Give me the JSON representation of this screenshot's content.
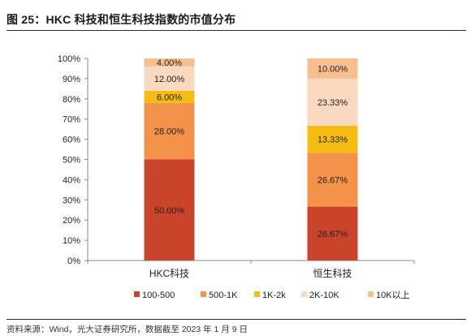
{
  "title": "图 25：HKC 科技和恒生科技指数的市值分布",
  "source": "资料来源：Wind，光大证券研究所，数据截至 2023 年 1 月 9 日",
  "colors": {
    "100-500": "#c9442a",
    "500-1K": "#f39248",
    "1K-2k": "#f5bd12",
    "2K-10K": "#fbd8c0",
    "10K以上": "#f7bf8e"
  },
  "chart_data": {
    "type": "bar",
    "stacked": true,
    "categories": [
      "HKC科技",
      "恒生科技"
    ],
    "y_ticks": [
      "0%",
      "10%",
      "20%",
      "30%",
      "40%",
      "50%",
      "60%",
      "70%",
      "80%",
      "90%",
      "100%"
    ],
    "ylim": [
      0,
      100
    ],
    "legend_position": "bottom",
    "series": [
      {
        "name": "100-500",
        "values": [
          50.0,
          26.67
        ],
        "labels": [
          "50.00%",
          "26.67%"
        ]
      },
      {
        "name": "500-1K",
        "values": [
          28.0,
          26.67
        ],
        "labels": [
          "28.00%",
          "26.67%"
        ]
      },
      {
        "name": "1K-2k",
        "values": [
          6.0,
          13.33
        ],
        "labels": [
          "6.00%",
          "13.33%"
        ]
      },
      {
        "name": "2K-10K",
        "values": [
          12.0,
          23.33
        ],
        "labels": [
          "12.00%",
          "23.33%"
        ]
      },
      {
        "name": "10K以上",
        "values": [
          4.0,
          10.0
        ],
        "labels": [
          "4.00%",
          "10.00%"
        ]
      }
    ]
  }
}
